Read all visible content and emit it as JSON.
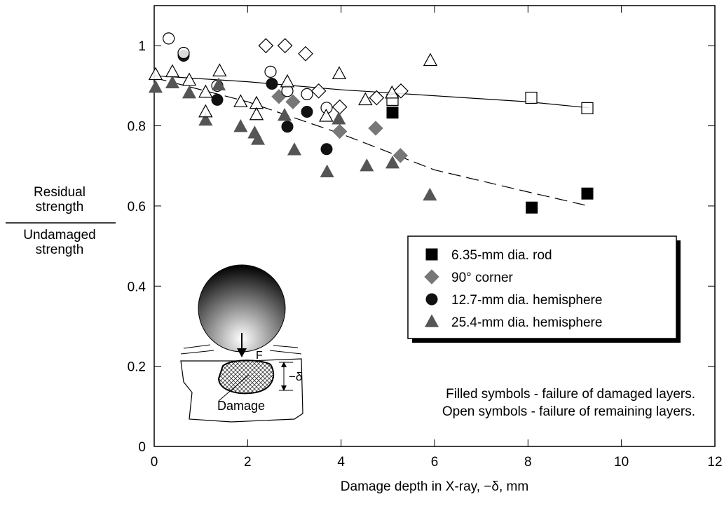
{
  "chart_data": {
    "type": "scatter",
    "y_label_numerator": [
      "Residual",
      "strength"
    ],
    "y_label_denominator": [
      "Undamaged",
      "strength"
    ],
    "x_label": "Damage depth in X-ray, −δ, mm",
    "xlim": [
      0,
      12
    ],
    "xticks": [
      0,
      2,
      4,
      6,
      8,
      10,
      12
    ],
    "ylim": [
      0,
      1.1
    ],
    "yticks": [
      0,
      0.2,
      0.4,
      0.6,
      0.8,
      1
    ],
    "legend_position": "right",
    "series": [
      {
        "name": "6.35-mm dia. rod",
        "color": "#000000",
        "marker": "square",
        "x": [
          5.1,
          8.08,
          9.27,
          8.07,
          9.27,
          5.1
        ],
        "values": [
          0.833,
          0.596,
          0.631,
          0.87,
          0.844,
          0.865
        ],
        "filled": [
          true,
          true,
          true,
          false,
          false,
          false
        ]
      },
      {
        "name": "90° corner",
        "color": "#777777",
        "marker": "diamond",
        "x": [
          2.67,
          2.97,
          3.97,
          4.74,
          5.27,
          2.8,
          3.24,
          2.39,
          3.52,
          3.97,
          4.76,
          5.28
        ],
        "values": [
          0.873,
          0.86,
          0.786,
          0.794,
          0.726,
          1.0,
          0.98,
          1.0,
          0.887,
          0.847,
          0.87,
          0.887
        ],
        "filled": [
          true,
          true,
          true,
          true,
          true,
          false,
          false,
          false,
          false,
          false,
          false,
          false
        ]
      },
      {
        "name": "12.7-mm dia. hemisphere",
        "color": "#111111",
        "marker": "circle",
        "x": [
          0.63,
          1.35,
          2.52,
          2.85,
          3.27,
          3.69,
          0.31,
          0.63,
          2.49,
          2.85,
          3.27,
          3.69,
          1.35
        ],
        "values": [
          0.975,
          0.865,
          0.905,
          0.798,
          0.835,
          0.742,
          1.018,
          0.982,
          0.935,
          0.887,
          0.879,
          0.845,
          0.9
        ],
        "filled": [
          true,
          true,
          true,
          true,
          true,
          true,
          false,
          false,
          false,
          false,
          false,
          false,
          false
        ]
      },
      {
        "name": "25.4-mm dia. hemisphere",
        "color": "#555555",
        "marker": "triangle",
        "x": [
          0.03,
          0.39,
          0.75,
          1.1,
          1.38,
          1.85,
          2.15,
          2.22,
          2.79,
          3.0,
          3.7,
          3.95,
          4.55,
          5.1,
          5.9,
          0.03,
          0.39,
          0.75,
          1.1,
          1.1,
          1.4,
          1.85,
          2.19,
          2.19,
          2.85,
          3.68,
          3.96,
          4.52,
          5.09,
          5.91
        ],
        "values": [
          0.896,
          0.907,
          0.882,
          0.814,
          0.902,
          0.798,
          0.782,
          0.766,
          0.826,
          0.74,
          0.685,
          0.817,
          0.7,
          0.707,
          0.627,
          0.928,
          0.935,
          0.914,
          0.884,
          0.835,
          0.937,
          0.86,
          0.856,
          0.828,
          0.91,
          0.824,
          0.93,
          0.865,
          0.882,
          0.963
        ],
        "filled": [
          true,
          true,
          true,
          true,
          true,
          true,
          true,
          true,
          true,
          true,
          true,
          true,
          true,
          true,
          true,
          false,
          false,
          false,
          false,
          false,
          false,
          false,
          false,
          false,
          false,
          false,
          false,
          false,
          false,
          false
        ]
      }
    ],
    "trend_lines": [
      {
        "style": "solid",
        "x": [
          0,
          2,
          4,
          6,
          8,
          9.3
        ],
        "values": [
          0.925,
          0.91,
          0.89,
          0.875,
          0.86,
          0.845
        ]
      },
      {
        "style": "dashed",
        "x": [
          0,
          2,
          4,
          6,
          8,
          9.3
        ],
        "values": [
          0.92,
          0.86,
          0.78,
          0.69,
          0.635,
          0.6
        ]
      }
    ],
    "annotations": [
      "Filled symbols - failure of damaged layers.",
      "Open symbols - failure of remaining layers."
    ],
    "inset_labels": [
      "F",
      "−δ",
      "Damage"
    ]
  }
}
